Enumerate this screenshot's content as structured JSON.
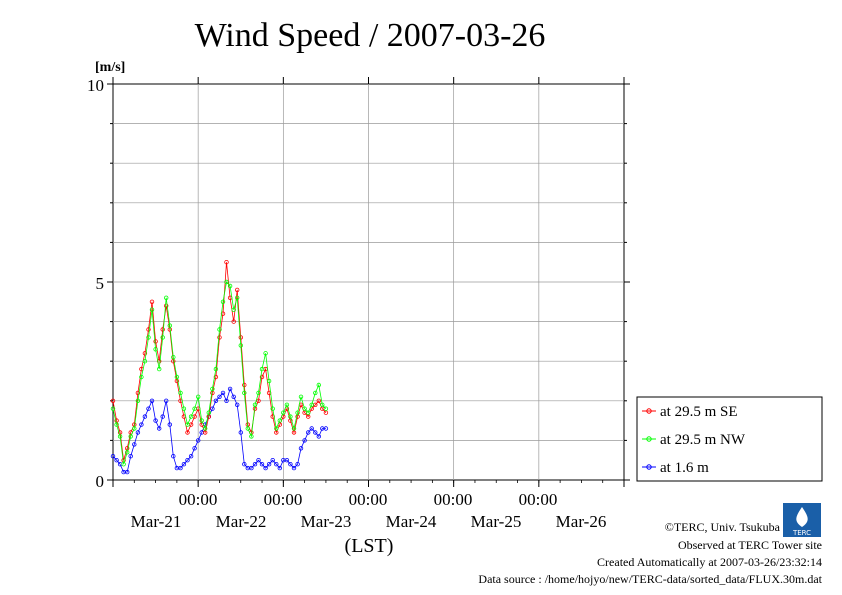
{
  "chart_data": {
    "type": "line",
    "title": "Wind Speed / 2007-03-26",
    "ylabel": "[m/s]",
    "xlabel": "(LST)",
    "ylim": [
      0,
      10
    ],
    "yticks": [
      "0",
      "5",
      "10"
    ],
    "xlim": [
      0,
      6
    ],
    "x_tick_time_labels": [
      "00:00",
      "00:00",
      "00:00",
      "00:00",
      "00:00"
    ],
    "x_day_labels": [
      "Mar-21",
      "Mar-22",
      "Mar-23",
      "Mar-24",
      "Mar-25",
      "Mar-26"
    ],
    "grid": true,
    "legend_position": "right",
    "series": [
      {
        "name": "at 29.5 m SE",
        "color": "#ff0000",
        "x": [
          0.0,
          0.042,
          0.083,
          0.125,
          0.167,
          0.208,
          0.25,
          0.292,
          0.333,
          0.375,
          0.417,
          0.458,
          0.5,
          0.542,
          0.583,
          0.625,
          0.667,
          0.708,
          0.75,
          0.792,
          0.833,
          0.875,
          0.917,
          0.958,
          1.0,
          1.042,
          1.083,
          1.125,
          1.167,
          1.208,
          1.25,
          1.292,
          1.333,
          1.375,
          1.417,
          1.458,
          1.5,
          1.542,
          1.583,
          1.625,
          1.667,
          1.708,
          1.75,
          1.792,
          1.833,
          1.875,
          1.917,
          1.958,
          2.0,
          2.042,
          2.083,
          2.125,
          2.167,
          2.208,
          2.25,
          2.292,
          2.333,
          2.375,
          2.417,
          2.458,
          2.5
        ],
        "values": [
          2.0,
          1.5,
          1.2,
          0.5,
          0.8,
          1.2,
          1.4,
          2.2,
          2.8,
          3.2,
          3.8,
          4.5,
          3.5,
          3.0,
          3.8,
          4.4,
          3.8,
          3.0,
          2.5,
          2.0,
          1.6,
          1.2,
          1.4,
          1.6,
          1.8,
          1.4,
          1.2,
          1.6,
          2.2,
          2.6,
          3.6,
          4.2,
          5.5,
          4.6,
          4.0,
          4.8,
          3.6,
          2.4,
          1.4,
          1.2,
          1.8,
          2.0,
          2.6,
          2.8,
          2.2,
          1.6,
          1.2,
          1.4,
          1.6,
          1.8,
          1.5,
          1.2,
          1.6,
          1.9,
          1.7,
          1.6,
          1.8,
          1.9,
          2.0,
          1.8,
          1.7
        ]
      },
      {
        "name": "at 29.5 m NW",
        "color": "#00ff00",
        "x": [
          0.0,
          0.042,
          0.083,
          0.125,
          0.167,
          0.208,
          0.25,
          0.292,
          0.333,
          0.375,
          0.417,
          0.458,
          0.5,
          0.542,
          0.583,
          0.625,
          0.667,
          0.708,
          0.75,
          0.792,
          0.833,
          0.875,
          0.917,
          0.958,
          1.0,
          1.042,
          1.083,
          1.125,
          1.167,
          1.208,
          1.25,
          1.292,
          1.333,
          1.375,
          1.417,
          1.458,
          1.5,
          1.542,
          1.583,
          1.625,
          1.667,
          1.708,
          1.75,
          1.792,
          1.833,
          1.875,
          1.917,
          1.958,
          2.0,
          2.042,
          2.083,
          2.125,
          2.167,
          2.208,
          2.25,
          2.292,
          2.333,
          2.375,
          2.417,
          2.458,
          2.5
        ],
        "values": [
          1.8,
          1.4,
          1.1,
          0.4,
          0.7,
          1.1,
          1.3,
          2.0,
          2.6,
          3.0,
          3.6,
          4.3,
          3.3,
          2.8,
          3.6,
          4.6,
          3.9,
          3.1,
          2.6,
          2.2,
          1.8,
          1.4,
          1.6,
          1.8,
          2.1,
          1.5,
          1.3,
          1.7,
          2.3,
          2.8,
          3.8,
          4.5,
          5.0,
          4.9,
          4.3,
          4.6,
          3.4,
          2.2,
          1.3,
          1.1,
          1.9,
          2.2,
          2.8,
          3.2,
          2.5,
          1.8,
          1.3,
          1.5,
          1.7,
          1.9,
          1.6,
          1.3,
          1.7,
          2.1,
          1.8,
          1.7,
          1.9,
          2.2,
          2.4,
          1.9,
          1.8
        ]
      },
      {
        "name": "at 1.6 m",
        "color": "#0000ff",
        "x": [
          0.0,
          0.042,
          0.083,
          0.125,
          0.167,
          0.208,
          0.25,
          0.292,
          0.333,
          0.375,
          0.417,
          0.458,
          0.5,
          0.542,
          0.583,
          0.625,
          0.667,
          0.708,
          0.75,
          0.792,
          0.833,
          0.875,
          0.917,
          0.958,
          1.0,
          1.042,
          1.083,
          1.125,
          1.167,
          1.208,
          1.25,
          1.292,
          1.333,
          1.375,
          1.417,
          1.458,
          1.5,
          1.542,
          1.583,
          1.625,
          1.667,
          1.708,
          1.75,
          1.792,
          1.833,
          1.875,
          1.917,
          1.958,
          2.0,
          2.042,
          2.083,
          2.125,
          2.167,
          2.208,
          2.25,
          2.292,
          2.333,
          2.375,
          2.417,
          2.458,
          2.5
        ],
        "values": [
          0.6,
          0.5,
          0.4,
          0.2,
          0.2,
          0.6,
          0.9,
          1.2,
          1.4,
          1.6,
          1.8,
          2.0,
          1.5,
          1.3,
          1.6,
          2.0,
          1.4,
          0.6,
          0.3,
          0.3,
          0.4,
          0.5,
          0.6,
          0.8,
          1.0,
          1.2,
          1.4,
          1.6,
          1.8,
          2.0,
          2.1,
          2.2,
          2.0,
          2.3,
          2.1,
          1.9,
          1.2,
          0.4,
          0.3,
          0.3,
          0.4,
          0.5,
          0.4,
          0.3,
          0.4,
          0.5,
          0.4,
          0.3,
          0.5,
          0.5,
          0.4,
          0.3,
          0.4,
          0.8,
          1.0,
          1.2,
          1.3,
          1.2,
          1.1,
          1.3,
          1.3
        ]
      }
    ]
  },
  "footer": {
    "copyright": "©TERC, Univ. Tsukuba",
    "observed": "Observed at TERC Tower site",
    "created": "Created Automatically at 2007-03-26/23:32:14",
    "source": "Data source : /home/hojyo/new/TERC-data/sorted_data/FLUX.30m.dat",
    "logo_text": "TERC"
  }
}
